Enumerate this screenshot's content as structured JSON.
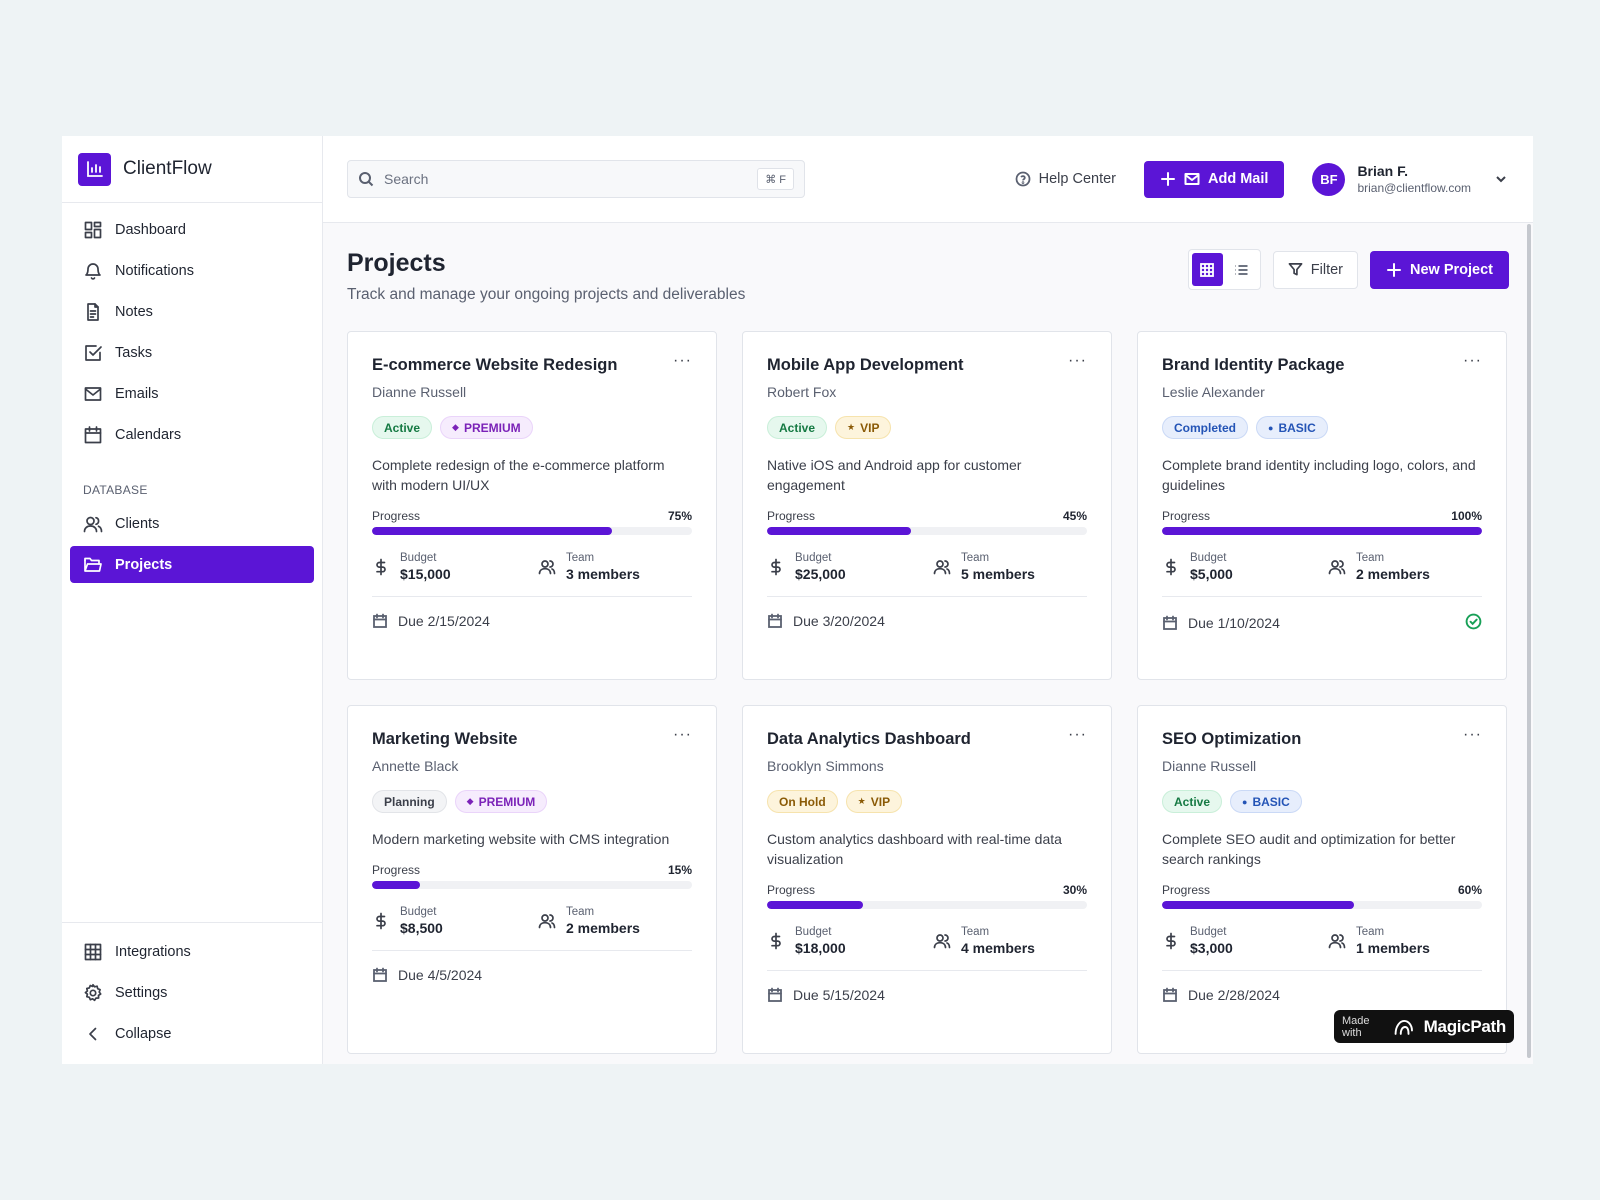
{
  "brand": {
    "name": "ClientFlow"
  },
  "sidebar": {
    "items": [
      {
        "label": "Dashboard",
        "icon": "dashboard-icon"
      },
      {
        "label": "Notifications",
        "icon": "bell-icon"
      },
      {
        "label": "Notes",
        "icon": "notes-icon"
      },
      {
        "label": "Tasks",
        "icon": "tasks-icon"
      },
      {
        "label": "Emails",
        "icon": "mail-icon"
      },
      {
        "label": "Calendars",
        "icon": "calendar-icon"
      }
    ],
    "section_label": "DATABASE",
    "db_items": [
      {
        "label": "Clients",
        "icon": "users-icon"
      },
      {
        "label": "Projects",
        "icon": "folder-icon",
        "active": true
      }
    ],
    "bottom_items": [
      {
        "label": "Integrations",
        "icon": "grid-icon"
      },
      {
        "label": "Settings",
        "icon": "gear-icon"
      },
      {
        "label": "Collapse",
        "icon": "chevron-left-icon"
      }
    ]
  },
  "topbar": {
    "search_placeholder": "Search",
    "shortcut": "⌘ F",
    "help_label": "Help Center",
    "add_mail_label": "Add Mail",
    "user": {
      "initials": "BF",
      "name": "Brian F.",
      "email": "brian@clientflow.com"
    }
  },
  "page": {
    "title": "Projects",
    "subtitle": "Track and manage your ongoing projects and deliverables",
    "filter_label": "Filter",
    "new_project_label": "New Project",
    "view_mode": "grid"
  },
  "labels": {
    "progress": "Progress",
    "budget": "Budget",
    "team": "Team"
  },
  "projects": [
    {
      "title": "E-commerce Website Redesign",
      "client": "Dianne Russell",
      "status": "Active",
      "tier": "PREMIUM",
      "tier_icon": "◆",
      "description": "Complete redesign of the e-commerce platform with modern UI/UX",
      "progress": 75,
      "progress_label": "75%",
      "budget": "$15,000",
      "team": "3 members",
      "due": "Due 2/15/2024",
      "completed": false
    },
    {
      "title": "Mobile App Development",
      "client": "Robert Fox",
      "status": "Active",
      "tier": "VIP",
      "tier_icon": "★",
      "description": "Native iOS and Android app for customer engagement",
      "progress": 45,
      "progress_label": "45%",
      "budget": "$25,000",
      "team": "5 members",
      "due": "Due 3/20/2024",
      "completed": false
    },
    {
      "title": "Brand Identity Package",
      "client": "Leslie Alexander",
      "status": "Completed",
      "tier": "BASIC",
      "tier_icon": "●",
      "description": "Complete brand identity including logo, colors, and guidelines",
      "progress": 100,
      "progress_label": "100%",
      "budget": "$5,000",
      "team": "2 members",
      "due": "Due 1/10/2024",
      "completed": true
    },
    {
      "title": "Marketing Website",
      "client": "Annette Black",
      "status": "Planning",
      "tier": "PREMIUM",
      "tier_icon": "◆",
      "description": "Modern marketing website with CMS integration",
      "progress": 15,
      "progress_label": "15%",
      "budget": "$8,500",
      "team": "2 members",
      "due": "Due 4/5/2024",
      "completed": false
    },
    {
      "title": "Data Analytics Dashboard",
      "client": "Brooklyn Simmons",
      "status": "On Hold",
      "tier": "VIP",
      "tier_icon": "★",
      "description": "Custom analytics dashboard with real-time data visualization",
      "progress": 30,
      "progress_label": "30%",
      "budget": "$18,000",
      "team": "4 members",
      "due": "Due 5/15/2024",
      "completed": false
    },
    {
      "title": "SEO Optimization",
      "client": "Dianne Russell",
      "status": "Active",
      "tier": "BASIC",
      "tier_icon": "●",
      "description": "Complete SEO audit and optimization for better search rankings",
      "progress": 60,
      "progress_label": "60%",
      "budget": "$3,000",
      "team": "1 members",
      "due": "Due 2/28/2024",
      "completed": false
    }
  ],
  "badge": {
    "small": "Made with",
    "big": "MagicPath"
  },
  "colors": {
    "accent": "#5b15d6",
    "success": "#18a057"
  }
}
